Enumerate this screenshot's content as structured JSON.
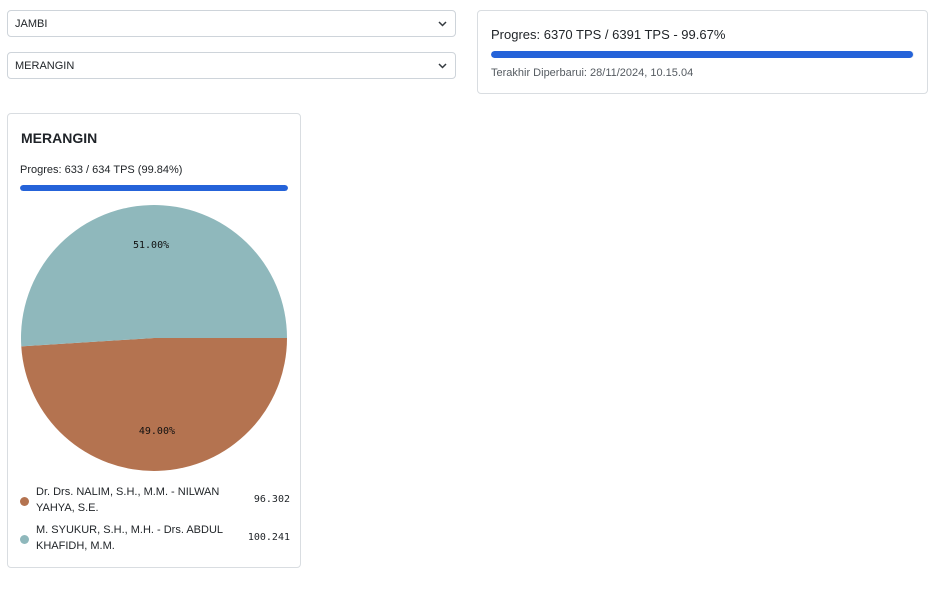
{
  "filters": {
    "province": "JAMBI",
    "regency": "MERANGIN"
  },
  "overall_progress": {
    "text": "Progres: 6370 TPS / 6391 TPS - 99.67%",
    "fraction": 0.9967,
    "updated": "Terakhir Diperbarui: 28/11/2024, 10.15.04",
    "bar_color": "#2563d9"
  },
  "region": {
    "title": "MERANGIN",
    "progress_text": "Progres: 633 / 634 TPS (99.84%)",
    "progress_fraction": 0.9984
  },
  "chart_data": {
    "type": "pie",
    "series": [
      {
        "name": "Dr. Drs. NALIM, S.H., M.M. - NILWAN YAHYA, S.E.",
        "value": 96302,
        "value_label": "96.302",
        "percent": 49.0,
        "percent_label": "49.00%",
        "color": "#b47350"
      },
      {
        "name": "M. SYUKUR, S.H., M.H. - Drs. ABDUL KHAFIDH, M.M.",
        "value": 100241,
        "value_label": "100.241",
        "percent": 51.0,
        "percent_label": "51.00%",
        "color": "#8fb8bc"
      }
    ]
  }
}
